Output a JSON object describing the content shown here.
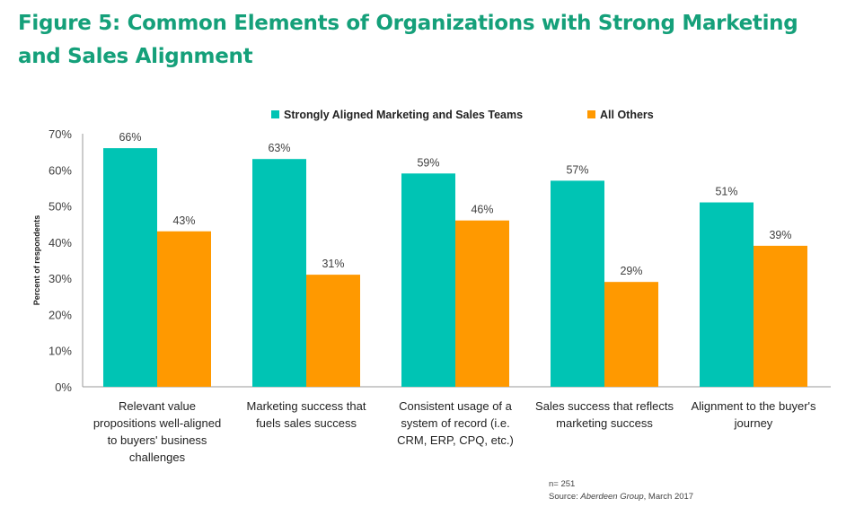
{
  "title": "Figure 5: Common Elements of Organizations with Strong Marketing and Sales Alignment",
  "chart_data": {
    "type": "bar",
    "title": "Figure 5: Common Elements of Organizations with Strong Marketing and Sales Alignment",
    "xlabel": "",
    "ylabel": "Percent of respondents",
    "ylim": [
      0,
      70
    ],
    "yticks": [
      "0%",
      "10%",
      "20%",
      "30%",
      "40%",
      "50%",
      "60%",
      "70%"
    ],
    "grid": false,
    "legend_position": "top",
    "categories": [
      [
        "Relevant value",
        "propositions well-aligned",
        "to buyers' business",
        "challenges"
      ],
      [
        "Marketing success that",
        "fuels sales success"
      ],
      [
        "Consistent usage of a",
        "system of record (i.e.",
        "CRM, ERP, CPQ, etc.)"
      ],
      [
        "Sales success that reflects",
        "marketing success"
      ],
      [
        "Alignment to the buyer's",
        "journey"
      ]
    ],
    "series": [
      {
        "name": "Strongly Aligned Marketing and Sales Teams",
        "color": "#00c4b4",
        "values": [
          66,
          63,
          59,
          57,
          51
        ],
        "labels": [
          "66%",
          "63%",
          "59%",
          "57%",
          "51%"
        ]
      },
      {
        "name": "All Others",
        "color": "#ff9900",
        "values": [
          43,
          31,
          46,
          29,
          39
        ],
        "labels": [
          "43%",
          "31%",
          "46%",
          "29%",
          "39%"
        ]
      }
    ]
  },
  "footnote": {
    "n": "n= 251",
    "source_prefix": "Source: ",
    "source_name": "Aberdeen Group",
    "source_suffix": ", March 2017"
  }
}
